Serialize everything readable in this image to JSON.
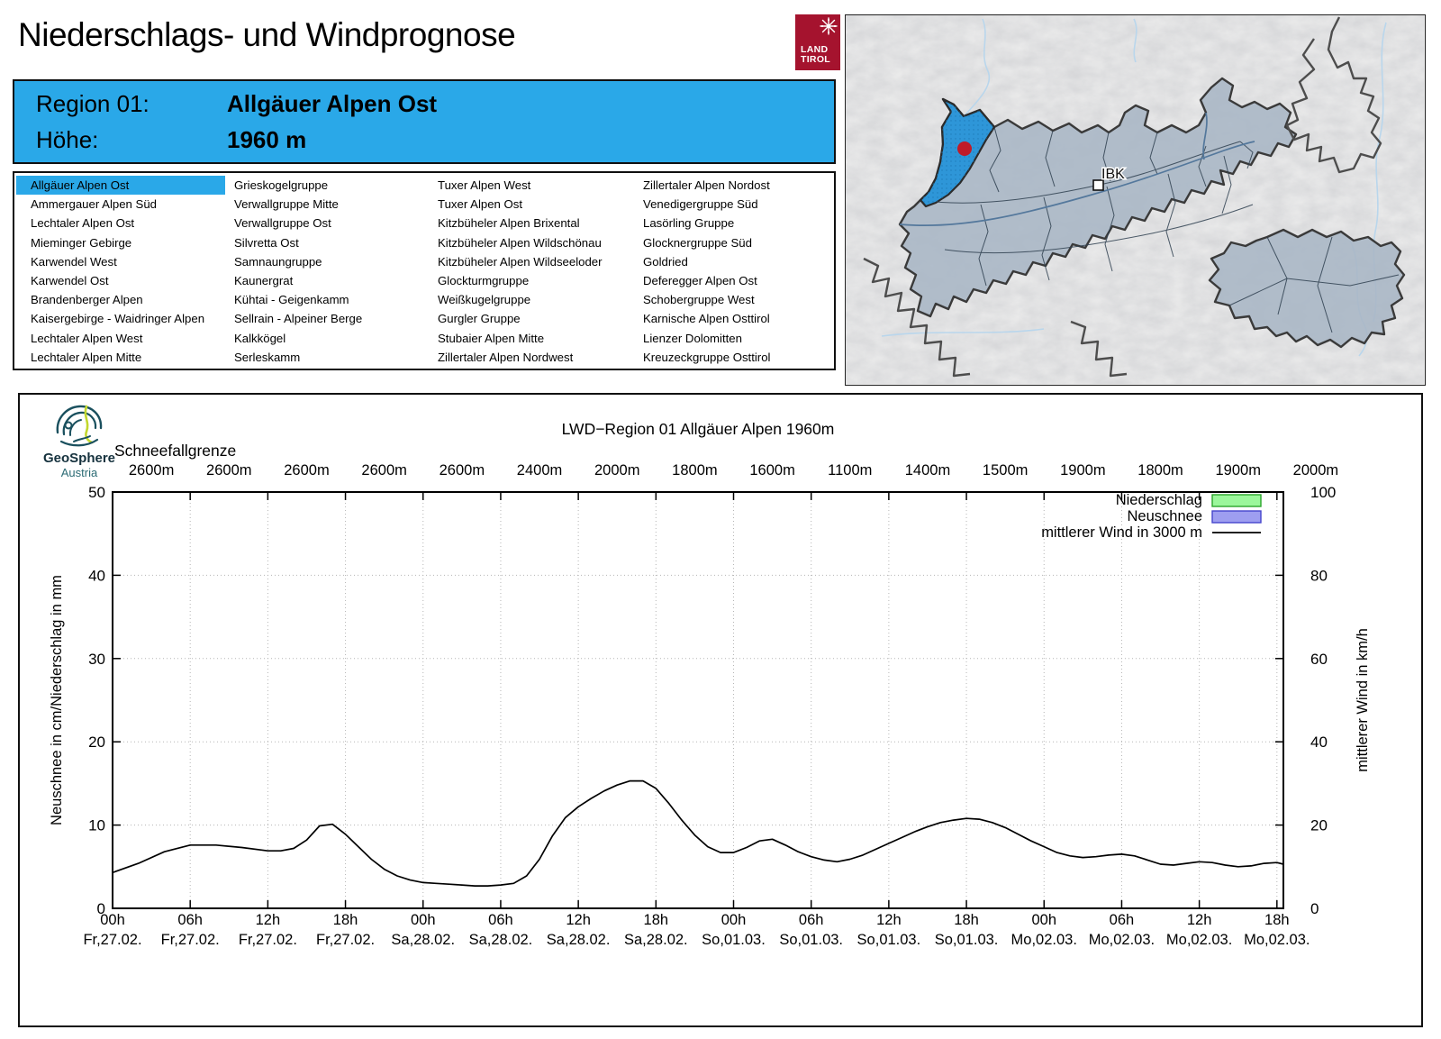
{
  "page": {
    "title": "Niederschlags- und Windprognose"
  },
  "logo_land_tirol": {
    "line1": "LAND",
    "line2": "TIROL"
  },
  "header": {
    "region_label": "Region 01:",
    "region_value": "Allgäuer Alpen Ost",
    "altitude_label": "Höhe:",
    "altitude_value": "1960 m"
  },
  "region_list": {
    "selected": "Allgäuer Alpen Ost",
    "selected_index": 0,
    "columns": [
      [
        "Allgäuer Alpen Ost",
        "Ammergauer Alpen Süd",
        "Lechtaler Alpen Ost",
        "Mieminger Gebirge",
        "Karwendel West",
        "Karwendel Ost",
        "Brandenberger Alpen",
        "Kaisergebirge - Waidringer Alpen",
        "Lechtaler Alpen West",
        "Lechtaler Alpen Mitte"
      ],
      [
        "Grieskogelgruppe",
        "Verwallgruppe Mitte",
        "Verwallgruppe Ost",
        "Silvretta Ost",
        "Samnaungruppe",
        "Kaunergrat",
        "Kühtai - Geigenkamm",
        "Sellrain - Alpeiner Berge",
        "Kalkkögel",
        "Serleskamm"
      ],
      [
        "Tuxer Alpen West",
        "Tuxer Alpen Ost",
        "Kitzbüheler Alpen Brixental",
        "Kitzbüheler Alpen Wildschönau",
        "Kitzbüheler Alpen Wildseeloder",
        "Glockturmgruppe",
        "Weißkugelgruppe",
        "Gurgler Gruppe",
        "Stubaier Alpen Mitte",
        "Zillertaler Alpen Nordwest"
      ],
      [
        "Zillertaler Alpen Nordost",
        "Venedigergruppe Süd",
        "Lasörling Gruppe",
        "Glocknergruppe Süd",
        "Goldried",
        "Deferegger Alpen Ost",
        "Schobergruppe West",
        "Karnische Alpen Osttirol",
        "Lienzer Dolomitten",
        "Kreuzeckgruppe Osttirol"
      ]
    ]
  },
  "map": {
    "label_ibk": "IBK",
    "selected_region_color": "#2e96d8",
    "region_fill": "#a9b6c5"
  },
  "geosphere": {
    "name": "GeoSphere",
    "country": "Austria"
  },
  "chart": {
    "title": "LWD−Region 01 Allgäuer Alpen 1960m",
    "snowline_label": "Schneefallgrenze",
    "snowline_values": [
      "2600m",
      "2600m",
      "2600m",
      "2600m",
      "2600m",
      "2400m",
      "2000m",
      "1800m",
      "1600m",
      "1100m",
      "1400m",
      "1500m",
      "1900m",
      "1800m",
      "1900m",
      "2000m"
    ],
    "legend": [
      {
        "label": "Niederschlag",
        "type": "box",
        "fill": "#9bf79b",
        "border": "#2aa52a"
      },
      {
        "label": "Neuschnee",
        "type": "box",
        "fill": "#9e9ef0",
        "border": "#4444cc"
      },
      {
        "label": "mittlerer Wind in 3000 m",
        "type": "line",
        "color": "#000000"
      }
    ],
    "y_left": {
      "label": "Neuschnee in cm/Niederschlag in mm",
      "ticks": [
        "0",
        "10",
        "20",
        "30",
        "40",
        "50"
      ]
    },
    "y_right": {
      "label": "mittlerer Wind in km/h",
      "ticks": [
        "0",
        "20",
        "40",
        "60",
        "80",
        "100"
      ]
    },
    "x_ticks": [
      {
        "time": "00h",
        "date": "Fr,27.02."
      },
      {
        "time": "06h",
        "date": "Fr,27.02."
      },
      {
        "time": "12h",
        "date": "Fr,27.02."
      },
      {
        "time": "18h",
        "date": "Fr,27.02."
      },
      {
        "time": "00h",
        "date": "Sa,28.02."
      },
      {
        "time": "06h",
        "date": "Sa,28.02."
      },
      {
        "time": "12h",
        "date": "Sa,28.02."
      },
      {
        "time": "18h",
        "date": "Sa,28.02."
      },
      {
        "time": "00h",
        "date": "So,01.03."
      },
      {
        "time": "06h",
        "date": "So,01.03."
      },
      {
        "time": "12h",
        "date": "So,01.03."
      },
      {
        "time": "18h",
        "date": "So,01.03."
      },
      {
        "time": "00h",
        "date": "Mo,02.03."
      },
      {
        "time": "06h",
        "date": "Mo,02.03."
      },
      {
        "time": "12h",
        "date": "Mo,02.03."
      },
      {
        "time": "18h",
        "date": "Mo,02.03."
      }
    ]
  },
  "chart_data": {
    "type": "line",
    "title": "LWD−Region 01 Allgäuer Alpen 1960m",
    "ylabel_left": "Neuschnee in cm/Niederschlag in mm",
    "ylabel_right": "mittlerer Wind in km/h",
    "ylim_left": [
      0,
      50
    ],
    "ylim_right": [
      0,
      100
    ],
    "x_hours_range": [
      0,
      90.5
    ],
    "x_tick_hours": [
      0,
      6,
      12,
      18,
      24,
      30,
      36,
      42,
      48,
      54,
      60,
      66,
      72,
      78,
      84,
      90
    ],
    "grid": true,
    "legend_position": "top-right-inside",
    "snowline_m": [
      2600,
      2600,
      2600,
      2600,
      2600,
      2400,
      2000,
      1800,
      1600,
      1100,
      1400,
      1500,
      1900,
      1800,
      1900,
      2000
    ],
    "series": [
      {
        "name": "mittlerer Wind in 3000 m",
        "unit": "km/h",
        "axis": "right",
        "type": "line",
        "color": "#000000",
        "points": [
          [
            0,
            8.6
          ],
          [
            2,
            10.8
          ],
          [
            4,
            13.6
          ],
          [
            6,
            15.2
          ],
          [
            8,
            15.2
          ],
          [
            10,
            14.6
          ],
          [
            12,
            13.8
          ],
          [
            13,
            13.8
          ],
          [
            14,
            14.4
          ],
          [
            15,
            16.4
          ],
          [
            16,
            19.8
          ],
          [
            17,
            20.2
          ],
          [
            18,
            17.8
          ],
          [
            19,
            14.8
          ],
          [
            20,
            11.8
          ],
          [
            21,
            9.4
          ],
          [
            22,
            7.8
          ],
          [
            23,
            6.8
          ],
          [
            24,
            6.2
          ],
          [
            25,
            6.0
          ],
          [
            26,
            5.8
          ],
          [
            27,
            5.6
          ],
          [
            28,
            5.4
          ],
          [
            29,
            5.4
          ],
          [
            30,
            5.6
          ],
          [
            31,
            6.0
          ],
          [
            32,
            7.8
          ],
          [
            33,
            11.8
          ],
          [
            34,
            17.4
          ],
          [
            35,
            21.8
          ],
          [
            36,
            24.4
          ],
          [
            37,
            26.4
          ],
          [
            38,
            28.2
          ],
          [
            39,
            29.6
          ],
          [
            40,
            30.6
          ],
          [
            41,
            30.6
          ],
          [
            42,
            28.8
          ],
          [
            43,
            25.2
          ],
          [
            44,
            21.2
          ],
          [
            45,
            17.6
          ],
          [
            46,
            14.8
          ],
          [
            47,
            13.4
          ],
          [
            48,
            13.4
          ],
          [
            49,
            14.6
          ],
          [
            50,
            16.2
          ],
          [
            51,
            16.6
          ],
          [
            52,
            15.2
          ],
          [
            53,
            13.6
          ],
          [
            54,
            12.4
          ],
          [
            55,
            11.6
          ],
          [
            56,
            11.2
          ],
          [
            57,
            11.8
          ],
          [
            58,
            12.8
          ],
          [
            59,
            14.2
          ],
          [
            60,
            15.6
          ],
          [
            61,
            17.0
          ],
          [
            62,
            18.4
          ],
          [
            63,
            19.6
          ],
          [
            64,
            20.6
          ],
          [
            65,
            21.2
          ],
          [
            66,
            21.6
          ],
          [
            67,
            21.4
          ],
          [
            68,
            20.6
          ],
          [
            69,
            19.4
          ],
          [
            70,
            17.8
          ],
          [
            71,
            16.2
          ],
          [
            72,
            14.8
          ],
          [
            73,
            13.4
          ],
          [
            74,
            12.6
          ],
          [
            75,
            12.2
          ],
          [
            76,
            12.4
          ],
          [
            77,
            12.8
          ],
          [
            78,
            13.0
          ],
          [
            79,
            12.6
          ],
          [
            80,
            11.6
          ],
          [
            81,
            10.6
          ],
          [
            82,
            10.4
          ],
          [
            83,
            10.8
          ],
          [
            84,
            11.2
          ],
          [
            85,
            11.0
          ],
          [
            86,
            10.4
          ],
          [
            87,
            10.0
          ],
          [
            88,
            10.2
          ],
          [
            89,
            10.8
          ],
          [
            90,
            11.0
          ],
          [
            90.5,
            10.6
          ]
        ]
      },
      {
        "name": "Niederschlag",
        "unit": "mm",
        "axis": "left",
        "type": "bar",
        "values_visible": "no bars visible (0 over whole period)"
      },
      {
        "name": "Neuschnee",
        "unit": "cm",
        "axis": "left",
        "type": "bar",
        "values_visible": "no bars visible (0 over whole period)"
      }
    ]
  }
}
